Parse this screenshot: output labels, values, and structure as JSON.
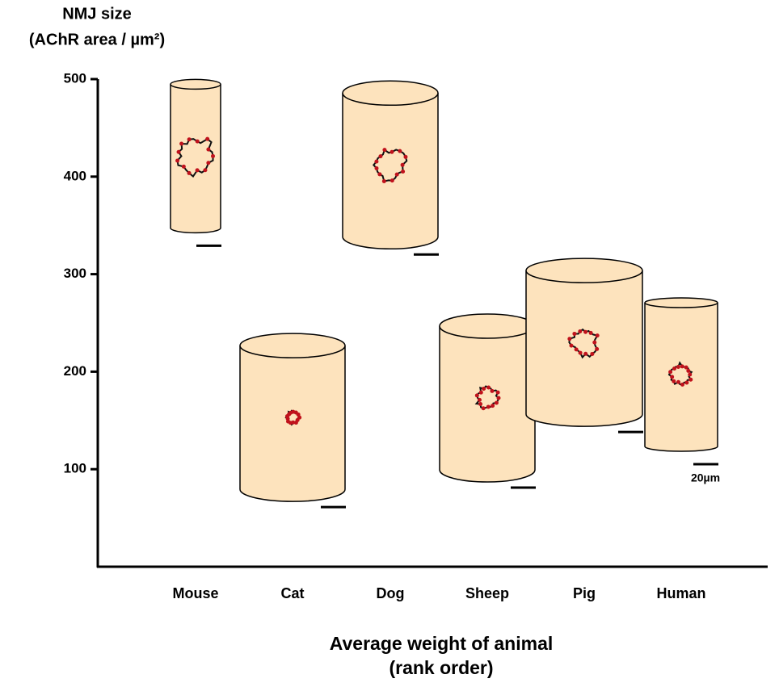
{
  "chart_data": {
    "type": "cylinder",
    "ylabel_lines": [
      "NMJ size",
      "(AChR area / µm²)"
    ],
    "xlabel_lines": [
      "Average weight of animal",
      "(rank order)"
    ],
    "categories": [
      "Mouse",
      "Cat",
      "Dog",
      "Sheep",
      "Pig",
      "Human"
    ],
    "values": [
      421,
      153,
      412,
      173,
      230,
      197
    ],
    "color": "#fde3bd",
    "ylim": [
      0,
      500
    ],
    "yticks": [
      100,
      200,
      300,
      400,
      500
    ],
    "scale_label": "20µm"
  }
}
